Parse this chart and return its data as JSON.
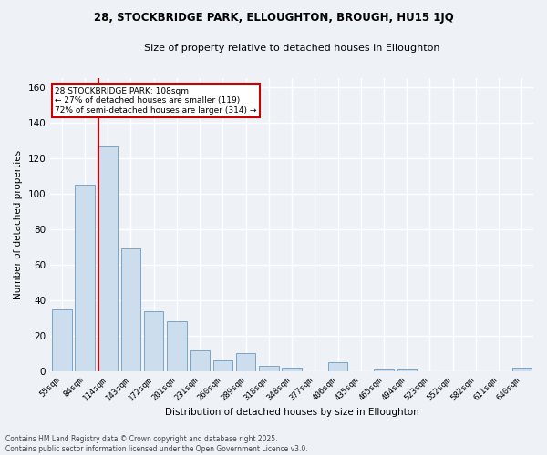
{
  "title1": "28, STOCKBRIDGE PARK, ELLOUGHTON, BROUGH, HU15 1JQ",
  "title2": "Size of property relative to detached houses in Elloughton",
  "xlabel": "Distribution of detached houses by size in Elloughton",
  "ylabel": "Number of detached properties",
  "categories": [
    "55sqm",
    "84sqm",
    "114sqm",
    "143sqm",
    "172sqm",
    "201sqm",
    "231sqm",
    "260sqm",
    "289sqm",
    "318sqm",
    "348sqm",
    "377sqm",
    "406sqm",
    "435sqm",
    "465sqm",
    "494sqm",
    "523sqm",
    "552sqm",
    "582sqm",
    "611sqm",
    "640sqm"
  ],
  "values": [
    35,
    105,
    127,
    69,
    34,
    28,
    12,
    6,
    10,
    3,
    2,
    0,
    5,
    0,
    1,
    1,
    0,
    0,
    0,
    0,
    2
  ],
  "bar_color": "#ccdded",
  "bar_edge_color": "#6a9abf",
  "annotation_text": "28 STOCKBRIDGE PARK: 108sqm\n← 27% of detached houses are smaller (119)\n72% of semi-detached houses are larger (314) →",
  "annotation_box_color": "white",
  "annotation_box_edge_color": "#cc0000",
  "red_line_color": "#cc0000",
  "ylim": [
    0,
    165
  ],
  "yticks": [
    0,
    20,
    40,
    60,
    80,
    100,
    120,
    140,
    160
  ],
  "footer_line1": "Contains HM Land Registry data © Crown copyright and database right 2025.",
  "footer_line2": "Contains public sector information licensed under the Open Government Licence v3.0.",
  "background_color": "#eef2f7",
  "grid_color": "#ffffff",
  "fig_width": 6.0,
  "fig_height": 5.0
}
